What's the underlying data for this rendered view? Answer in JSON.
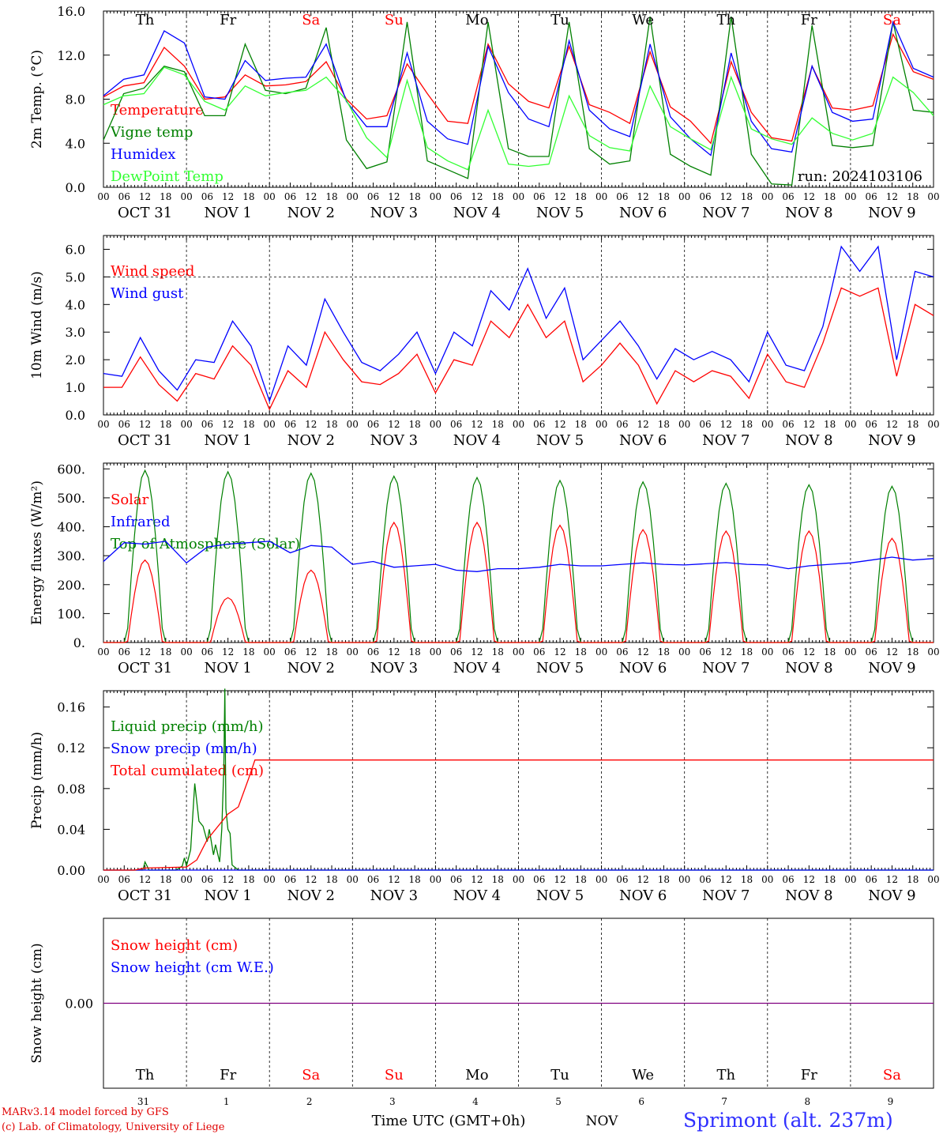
{
  "meta": {
    "run": "run: 2024103106"
  },
  "days": [
    "Th",
    "Fr",
    "Sa",
    "Su",
    "Mo",
    "Tu",
    "We",
    "Th",
    "Fr",
    "Sa"
  ],
  "weekend_idx": [
    2,
    3,
    9
  ],
  "date_labels": [
    "OCT 31",
    "NOV  1",
    "NOV  2",
    "NOV  3",
    "NOV  4",
    "NOV  5",
    "NOV  6",
    "NOV  7",
    "NOV  8",
    "NOV  9"
  ],
  "hour_ticks": [
    "00",
    "06",
    "12",
    "18"
  ],
  "bottom": {
    "day_numbers": [
      "31",
      "1",
      "2",
      "3",
      "4",
      "5",
      "6",
      "7",
      "8",
      "9"
    ],
    "axis_title": "Time UTC (GMT+0h)",
    "month": "NOV",
    "credit1": "MARv3.14 model forced by GFS",
    "credit2": "(c) Lab. of Climatology, University of Liege",
    "station": "Sprimont (alt. 237m)"
  },
  "colors": {
    "red": "#ff0000",
    "green": "#008000",
    "blue": "#0000ff",
    "lightgreen": "#33ff33",
    "purple": "#800080"
  },
  "chart_data": [
    {
      "type": "line",
      "ylabel": "2m Temp. (°C)",
      "ylim": [
        0,
        16
      ],
      "yticks": [
        "0.0",
        "4.0",
        "8.0",
        "12.0",
        "16.0"
      ],
      "legend": [
        {
          "name": "Temperature",
          "color": "#ff0000"
        },
        {
          "name": "Vigne temp",
          "color": "#008000"
        },
        {
          "name": "Humidex",
          "color": "#0000ff"
        },
        {
          "name": "DewPoint Temp",
          "color": "#33ff33"
        }
      ],
      "series": [
        {
          "name": "Temperature",
          "color": "#ff0000",
          "values": [
            8.2,
            9.2,
            9.5,
            12.7,
            11.0,
            8.0,
            8.2,
            10.2,
            9.2,
            9.3,
            9.6,
            11.4,
            8.0,
            6.2,
            6.5,
            11.2,
            8.5,
            6.0,
            5.8,
            13.0,
            9.4,
            7.8,
            7.2,
            12.8,
            7.5,
            6.8,
            5.8,
            12.3,
            7.3,
            6.0,
            4.0,
            11.4,
            6.8,
            4.5,
            4.2,
            11.0,
            7.2,
            7.0,
            7.4,
            13.9,
            10.5,
            9.8
          ]
        },
        {
          "name": "Vigne temp",
          "color": "#008000",
          "values": [
            4.3,
            8.5,
            9.0,
            11.0,
            10.5,
            6.5,
            6.5,
            13.0,
            8.8,
            8.5,
            9.0,
            14.5,
            4.3,
            1.7,
            2.3,
            15.0,
            2.4,
            1.6,
            0.8,
            15.0,
            3.5,
            2.8,
            2.8,
            15.0,
            3.5,
            2.1,
            2.4,
            15.5,
            3.0,
            1.9,
            1.1,
            15.5,
            3.0,
            0.3,
            0.2,
            14.7,
            3.8,
            3.6,
            3.8,
            15.0,
            7.0,
            6.8
          ]
        },
        {
          "name": "Humidex",
          "color": "#0000ff",
          "values": [
            8.3,
            9.8,
            10.2,
            14.2,
            13.1,
            8.2,
            8.0,
            11.5,
            9.7,
            9.9,
            10.0,
            13.0,
            7.8,
            5.5,
            5.5,
            12.2,
            6.0,
            4.4,
            3.9,
            12.8,
            8.6,
            6.2,
            5.5,
            13.3,
            7.0,
            5.3,
            4.6,
            13.0,
            6.4,
            4.4,
            2.9,
            12.2,
            6.0,
            3.5,
            3.2,
            11.0,
            6.8,
            6.0,
            6.2,
            15.0,
            10.8,
            10.0
          ]
        },
        {
          "name": "DewPoint Temp",
          "color": "#33ff33",
          "values": [
            7.5,
            8.3,
            8.5,
            10.9,
            10.2,
            7.8,
            7.0,
            9.2,
            8.3,
            8.6,
            8.8,
            10.0,
            7.9,
            4.5,
            2.7,
            9.7,
            3.6,
            2.4,
            1.6,
            7.0,
            2.1,
            1.9,
            2.1,
            8.3,
            4.7,
            3.6,
            3.3,
            9.2,
            5.5,
            4.4,
            3.4,
            10.0,
            5.3,
            4.4,
            3.9,
            6.3,
            4.9,
            4.3,
            4.9,
            10.0,
            8.6,
            6.5
          ]
        }
      ]
    },
    {
      "type": "line",
      "ylabel": "10m Wind (m/s)",
      "ylim": [
        0,
        6.5
      ],
      "yticks": [
        "0.0",
        "1.0",
        "2.0",
        "3.0",
        "4.0",
        "5.0",
        "6.0"
      ],
      "hline": 5,
      "legend": [
        {
          "name": "Wind speed",
          "color": "#ff0000"
        },
        {
          "name": "Wind gust",
          "color": "#0000ff"
        }
      ],
      "series": [
        {
          "name": "Wind speed",
          "color": "#ff0000",
          "values": [
            1.0,
            1.0,
            2.1,
            1.1,
            0.5,
            1.5,
            1.3,
            2.5,
            1.8,
            0.2,
            1.6,
            1.0,
            3.0,
            2.0,
            1.2,
            1.1,
            1.5,
            2.2,
            0.8,
            2.0,
            1.8,
            3.4,
            2.8,
            4.0,
            2.8,
            3.4,
            1.2,
            1.8,
            2.6,
            1.8,
            0.4,
            1.6,
            1.2,
            1.6,
            1.4,
            0.6,
            2.2,
            1.2,
            1.0,
            2.6,
            4.6,
            4.3,
            4.6,
            1.4,
            4.0,
            3.6
          ]
        },
        {
          "name": "Wind gust",
          "color": "#0000ff",
          "values": [
            1.5,
            1.4,
            2.8,
            1.6,
            0.9,
            2.0,
            1.9,
            3.4,
            2.5,
            0.5,
            2.5,
            1.8,
            4.2,
            3.0,
            1.9,
            1.6,
            2.2,
            3.0,
            1.5,
            3.0,
            2.5,
            4.5,
            3.8,
            5.3,
            3.5,
            4.6,
            2.0,
            2.7,
            3.4,
            2.5,
            1.3,
            2.4,
            2.0,
            2.3,
            2.0,
            1.2,
            3.0,
            1.8,
            1.6,
            3.2,
            6.1,
            5.2,
            6.1,
            2.0,
            5.2,
            5.0
          ]
        }
      ]
    },
    {
      "type": "line",
      "ylabel": "Energy fluxes (W/m²)",
      "ylim": [
        0,
        620
      ],
      "yticks": [
        "0.",
        "100.",
        "200.",
        "300.",
        "400.",
        "500.",
        "600."
      ],
      "legend": [
        {
          "name": "Solar",
          "color": "#ff0000"
        },
        {
          "name": "Infrared",
          "color": "#0000ff"
        },
        {
          "name": "Top of Atmosphere (Solar)",
          "color": "#008000"
        }
      ],
      "solar_peaks": [
        285,
        155,
        250,
        415,
        415,
        405,
        390,
        385,
        385,
        360
      ],
      "toa_peaks": [
        595,
        590,
        585,
        575,
        570,
        560,
        555,
        550,
        545,
        540
      ],
      "series": [
        {
          "name": "Infrared",
          "color": "#0000ff",
          "values": [
            280,
            345,
            340,
            350,
            275,
            330,
            340,
            345,
            350,
            310,
            335,
            330,
            270,
            280,
            260,
            265,
            270,
            250,
            245,
            255,
            255,
            260,
            270,
            265,
            265,
            270,
            275,
            270,
            268,
            272,
            276,
            270,
            268,
            255,
            265,
            270,
            275,
            285,
            295,
            285,
            290
          ]
        }
      ]
    },
    {
      "type": "line",
      "ylabel": "Precip (mm/h)",
      "ylim": [
        0,
        0.176
      ],
      "yticks": [
        "0.00",
        "0.04",
        "0.08",
        "0.12",
        "0.16"
      ],
      "legend": [
        {
          "name": "Liquid precip (mm/h)",
          "color": "#008000"
        },
        {
          "name": "Snow precip (mm/h)",
          "color": "#0000ff"
        },
        {
          "name": "Total cumulated (cm)",
          "color": "#ff0000"
        }
      ],
      "series": [
        {
          "name": "Liquid precip (mm/h)",
          "color": "#008000",
          "points": [
            [
              0,
              0
            ],
            [
              1.9,
              0
            ],
            [
              2.0,
              0.008
            ],
            [
              2.2,
              0
            ],
            [
              3.5,
              0
            ],
            [
              3.8,
              0.004
            ],
            [
              3.9,
              0.012
            ],
            [
              4.0,
              0.004
            ],
            [
              4.2,
              0.02
            ],
            [
              4.4,
              0.085
            ],
            [
              4.6,
              0.048
            ],
            [
              4.8,
              0.043
            ],
            [
              5.0,
              0.028
            ],
            [
              5.1,
              0.04
            ],
            [
              5.3,
              0.015
            ],
            [
              5.4,
              0.025
            ],
            [
              5.6,
              0.008
            ],
            [
              5.7,
              0.04
            ],
            [
              5.8,
              0.1
            ],
            [
              5.85,
              0.178
            ],
            [
              5.9,
              0.06
            ],
            [
              6.0,
              0.04
            ],
            [
              6.1,
              0.036
            ],
            [
              6.2,
              0.005
            ],
            [
              6.5,
              0
            ],
            [
              40,
              0
            ]
          ]
        },
        {
          "name": "Snow precip (mm/h)",
          "color": "#0000ff",
          "points": [
            [
              0,
              0
            ],
            [
              40,
              0
            ]
          ]
        },
        {
          "name": "Total cumulated (cm)",
          "color": "#ff0000",
          "points": [
            [
              0,
              0
            ],
            [
              1.5,
              0
            ],
            [
              2.0,
              0.002
            ],
            [
              4.0,
              0.003
            ],
            [
              4.5,
              0.01
            ],
            [
              5.0,
              0.03
            ],
            [
              6.0,
              0.055
            ],
            [
              6.5,
              0.062
            ],
            [
              7.0,
              0.09
            ],
            [
              7.3,
              0.108
            ],
            [
              40,
              0.108
            ]
          ]
        }
      ]
    },
    {
      "type": "line",
      "ylabel": "Snow height (cm)",
      "ylim": [
        -1,
        1
      ],
      "yticks": [
        "0.00"
      ],
      "legend": [
        {
          "name": "Snow height (cm)",
          "color": "#ff0000"
        },
        {
          "name": "Snow height (cm W.E.)",
          "color": "#0000ff"
        }
      ],
      "series": [
        {
          "name": "Snow height (cm)",
          "color": "#800080",
          "values": [
            0,
            0
          ]
        }
      ]
    }
  ]
}
